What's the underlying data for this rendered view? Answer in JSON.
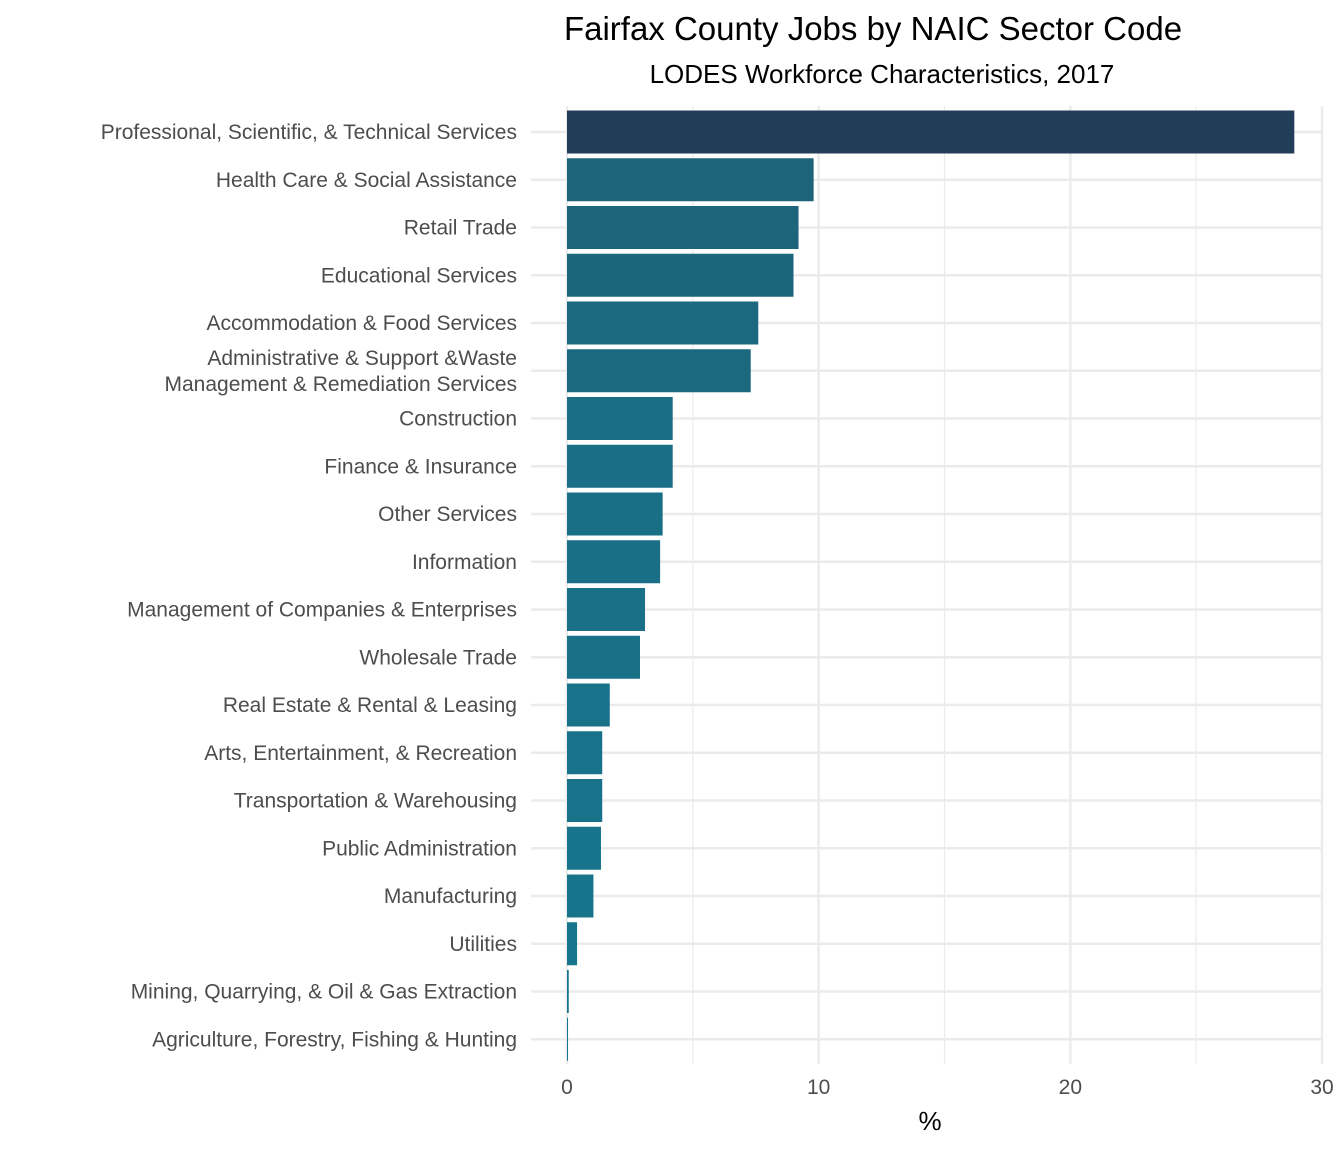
{
  "chart_data": {
    "type": "bar",
    "orientation": "horizontal",
    "title": "Fairfax County Jobs by NAIC Sector Code",
    "subtitle": "LODES Workforce Characteristics, 2017",
    "xlabel": "%",
    "ylabel": "",
    "xlim": [
      0,
      30
    ],
    "x_ticks": [
      0,
      10,
      20,
      30
    ],
    "grid": true,
    "categories": [
      [
        "Professional, Scientific, & Technical Services"
      ],
      [
        "Health Care & Social Assistance"
      ],
      [
        "Retail Trade"
      ],
      [
        "Educational Services"
      ],
      [
        "Accommodation & Food Services"
      ],
      [
        "Administrative & Support &Waste",
        "Management & Remediation Services"
      ],
      [
        "Construction"
      ],
      [
        "Finance & Insurance"
      ],
      [
        "Other Services"
      ],
      [
        "Information"
      ],
      [
        "Management of Companies & Enterprises"
      ],
      [
        "Wholesale Trade"
      ],
      [
        "Real Estate & Rental & Leasing"
      ],
      [
        "Arts, Entertainment, & Recreation"
      ],
      [
        "Transportation & Warehousing"
      ],
      [
        "Public Administration"
      ],
      [
        "Manufacturing"
      ],
      [
        "Utilities"
      ],
      [
        "Mining, Quarrying, & Oil & Gas Extraction"
      ],
      [
        "Agriculture, Forestry, Fishing & Hunting"
      ]
    ],
    "values": [
      28.9,
      9.8,
      9.2,
      9.0,
      7.6,
      7.3,
      4.2,
      4.2,
      3.8,
      3.7,
      3.1,
      2.9,
      1.7,
      1.4,
      1.4,
      1.35,
      1.05,
      0.4,
      0.07,
      0.04
    ],
    "colors": {
      "top_bar": "#223d58",
      "bar_high": "#1d6479",
      "bar_low": "#17768d"
    }
  }
}
